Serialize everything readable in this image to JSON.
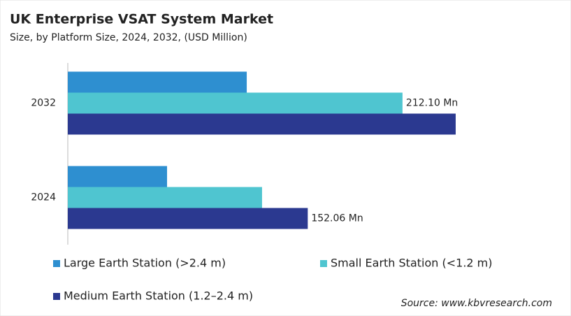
{
  "chart_data": {
    "type": "bar",
    "orientation": "horizontal",
    "title": "UK Enterprise VSAT System Market",
    "subtitle": "Size, by Platform Size, 2024, 2032, (USD Million)",
    "categories": [
      "2032",
      "2024"
    ],
    "series": [
      {
        "name": "Large Earth Station (>2.4 m)",
        "color": "#2e8fd0",
        "values": [
          113.4,
          62.9
        ]
      },
      {
        "name": "Small Earth Station (<1.2 m)",
        "color": "#4fc5d0",
        "values": [
          212.1,
          123.1
        ],
        "value_labels": [
          "212.10 Mn",
          null
        ]
      },
      {
        "name": "Medium Earth Station (1.2–2.4 m)",
        "color": "#2b3990",
        "values": [
          245.8,
          152.06
        ],
        "value_labels": [
          null,
          "152.06 Mn"
        ]
      }
    ],
    "source": "Source: www.kbvresearch.com"
  }
}
